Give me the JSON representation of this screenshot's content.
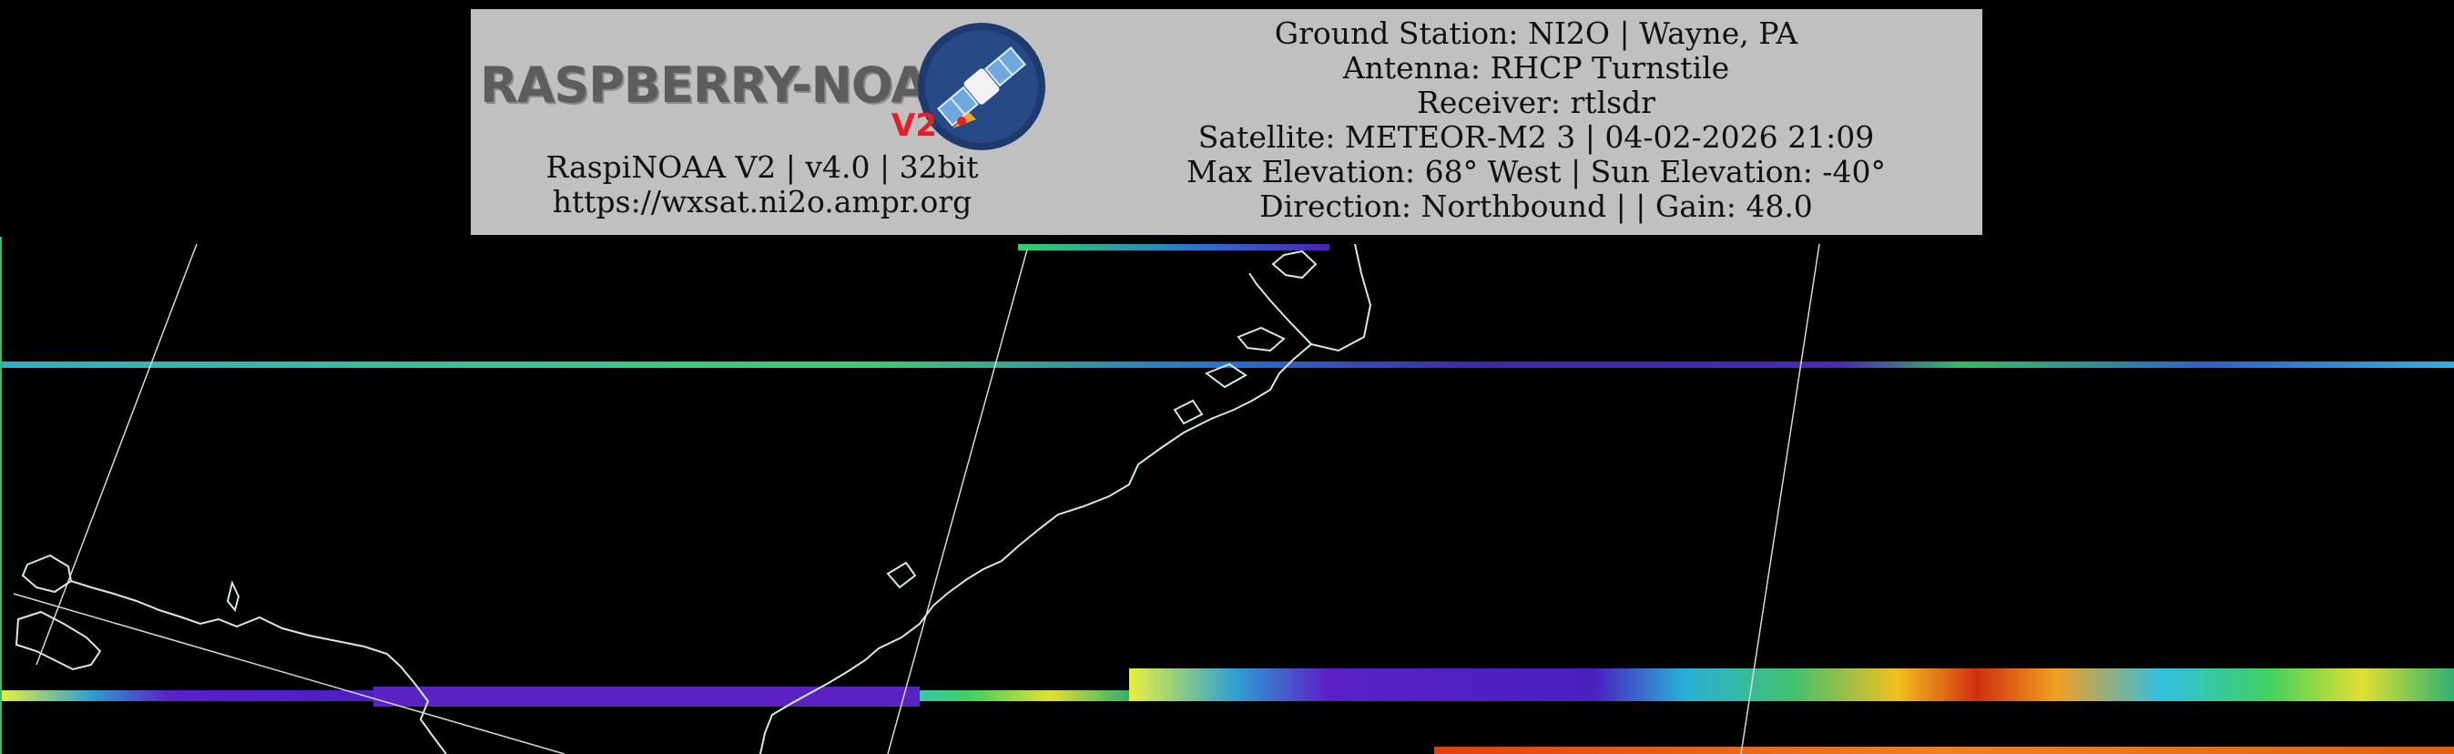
{
  "logo": {
    "text": "RASPBERRY-NOAA",
    "badge": "V2",
    "icon": "satellite-icon"
  },
  "banner_left": {
    "line1": "RaspiNOAA V2 | v4.0 | 32bit",
    "line2": "https://wxsat.ni2o.ampr.org"
  },
  "banner_right": {
    "ground_station": "Ground Station: NI2O | Wayne, PA",
    "antenna": "Antenna: RHCP Turnstile",
    "receiver": "Receiver: rtlsdr",
    "satellite": "Satellite: METEOR-M2 3 | 04-02-2026 21:09",
    "elevation": "Max Elevation: 68° West | Sun Elevation: -40°",
    "direction": "Direction: Northbound | | Gain: 48.0"
  },
  "colors": {
    "banner_bg": "#c0c0c0",
    "background": "#000000",
    "coastline": "#cfeee0",
    "gridline": "#d8d8d8",
    "logo_red": "#e0202a",
    "logo_badge_bg": "#1f3a6e"
  }
}
